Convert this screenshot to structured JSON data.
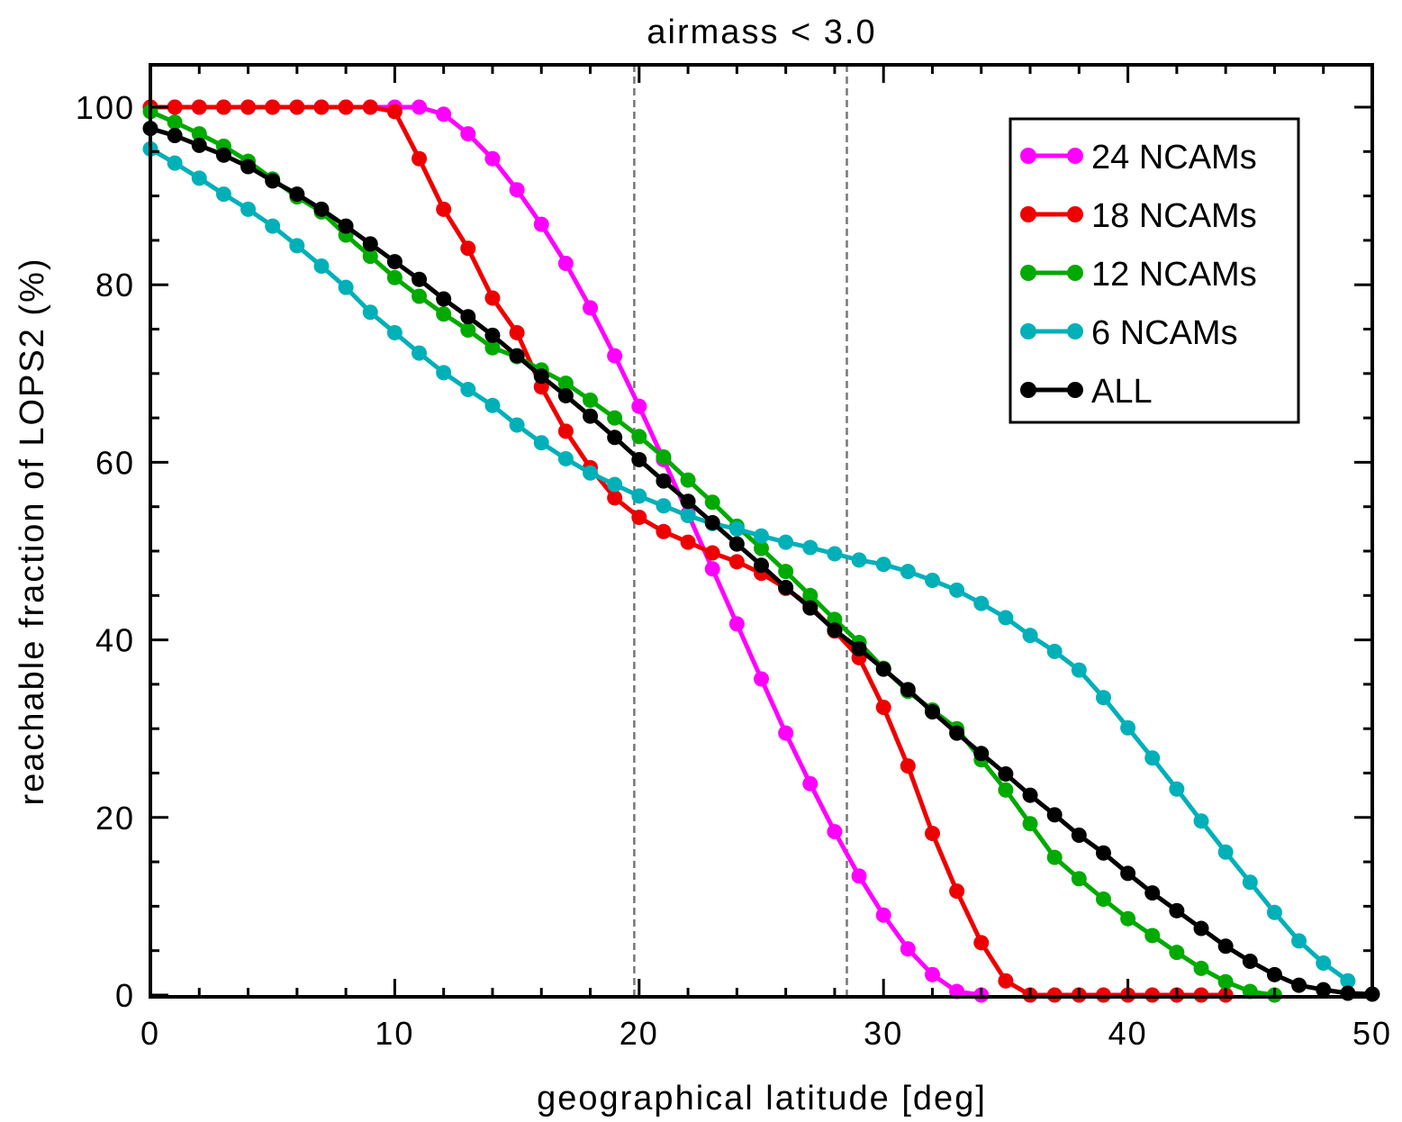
{
  "chart_data": {
    "type": "line",
    "title": "airmass < 3.0",
    "xlabel": "geographical latitude [deg]",
    "ylabel": "reachable fraction of LOPS2 (%)",
    "xlim": [
      0,
      50
    ],
    "ylim": [
      0,
      100
    ],
    "x_ticks": [
      0,
      10,
      20,
      30,
      40,
      50
    ],
    "y_ticks": [
      0,
      20,
      40,
      60,
      80,
      100
    ],
    "x_tick_labels": [
      "0",
      "10",
      "20",
      "30",
      "40",
      "50"
    ],
    "y_tick_labels": [
      "0",
      "20",
      "40",
      "60",
      "80",
      "100"
    ],
    "vertical_reference_lines": [
      19.8,
      28.5
    ],
    "legend_position": "top-right",
    "series": [
      {
        "name": "24 NCAMs",
        "color": "#ff00ff",
        "x": [
          0,
          1,
          2,
          3,
          4,
          5,
          6,
          7,
          8,
          9,
          10,
          11,
          12,
          13,
          14,
          15,
          16,
          17,
          18,
          19,
          20,
          21,
          22,
          23,
          24,
          25,
          26,
          27,
          28,
          29,
          30,
          31,
          32,
          33,
          34
        ],
        "values": [
          100,
          100,
          100,
          100,
          100,
          100,
          100,
          100,
          100,
          100,
          100,
          100,
          99.2,
          97,
          94.2,
          90.7,
          86.8,
          82.4,
          77.4,
          72,
          66.3,
          60.3,
          54.2,
          48,
          41.8,
          35.6,
          29.5,
          23.8,
          18.4,
          13.4,
          9,
          5.2,
          2.3,
          0.4,
          0
        ]
      },
      {
        "name": "18 NCAMs",
        "color": "#ee0000",
        "x": [
          0,
          1,
          2,
          3,
          4,
          5,
          6,
          7,
          8,
          9,
          10,
          11,
          12,
          13,
          14,
          15,
          16,
          17,
          18,
          19,
          20,
          21,
          22,
          23,
          24,
          25,
          26,
          27,
          28,
          29,
          30,
          31,
          32,
          33,
          34,
          35,
          36,
          37,
          38,
          39,
          40,
          41,
          42,
          43,
          44
        ],
        "values": [
          100,
          100,
          100,
          100,
          100,
          100,
          100,
          100,
          100,
          100,
          99.5,
          94.2,
          88.5,
          84.1,
          78.5,
          74.6,
          68.5,
          63.5,
          59.4,
          56,
          53.8,
          52.2,
          51,
          49.8,
          48.8,
          47.5,
          45.8,
          43.8,
          41,
          38,
          32.4,
          25.8,
          18.2,
          11.7,
          5.9,
          1.6,
          0,
          0,
          0,
          0,
          0,
          0,
          0,
          0,
          0
        ]
      },
      {
        "name": "12 NCAMs",
        "color": "#00aa00",
        "x": [
          0,
          1,
          2,
          3,
          4,
          5,
          6,
          7,
          8,
          9,
          10,
          11,
          12,
          13,
          14,
          15,
          16,
          17,
          18,
          19,
          20,
          21,
          22,
          23,
          24,
          25,
          26,
          27,
          28,
          29,
          30,
          31,
          32,
          33,
          34,
          35,
          36,
          37,
          38,
          39,
          40,
          41,
          42,
          43,
          44,
          45,
          46
        ],
        "values": [
          99.5,
          98.3,
          97,
          95.6,
          93.9,
          91.9,
          89.9,
          88.2,
          85.6,
          83.2,
          80.8,
          78.7,
          76.7,
          74.9,
          72.9,
          71.9,
          70.4,
          68.9,
          67,
          65,
          62.9,
          60.6,
          58,
          55.5,
          52.8,
          50.3,
          47.7,
          45,
          42.3,
          39.7,
          36.8,
          34.2,
          32.1,
          30,
          26.5,
          23.1,
          19.3,
          15.5,
          13.1,
          10.8,
          8.6,
          6.7,
          4.8,
          3,
          1.5,
          0.4,
          0
        ]
      },
      {
        "name": "6 NCAMs",
        "color": "#00b0b8",
        "x": [
          0,
          1,
          2,
          3,
          4,
          5,
          6,
          7,
          8,
          9,
          10,
          11,
          12,
          13,
          14,
          15,
          16,
          17,
          18,
          19,
          20,
          21,
          22,
          23,
          24,
          25,
          26,
          27,
          28,
          29,
          30,
          31,
          32,
          33,
          34,
          35,
          36,
          37,
          38,
          39,
          40,
          41,
          42,
          43,
          44,
          45,
          46,
          47,
          48,
          49
        ],
        "values": [
          95.3,
          93.7,
          92,
          90.2,
          88.5,
          86.6,
          84.4,
          82.1,
          79.7,
          76.9,
          74.6,
          72.3,
          70.1,
          68.2,
          66.4,
          64.2,
          62.2,
          60.4,
          58.8,
          57.5,
          56.2,
          55.1,
          54,
          53.1,
          52.5,
          51.7,
          51,
          50.4,
          49.7,
          49,
          48.5,
          47.7,
          46.7,
          45.6,
          44.1,
          42.5,
          40.5,
          38.7,
          36.6,
          33.5,
          30.1,
          26.7,
          23.2,
          19.6,
          16.1,
          12.7,
          9.3,
          6.1,
          3.6,
          1.6
        ]
      },
      {
        "name": "ALL",
        "color": "#000000",
        "x": [
          0,
          1,
          2,
          3,
          4,
          5,
          6,
          7,
          8,
          9,
          10,
          11,
          12,
          13,
          14,
          15,
          16,
          17,
          18,
          19,
          20,
          21,
          22,
          23,
          24,
          25,
          26,
          27,
          28,
          29,
          30,
          31,
          32,
          33,
          34,
          35,
          36,
          37,
          38,
          39,
          40,
          41,
          42,
          43,
          44,
          45,
          46,
          47,
          48,
          49,
          50
        ],
        "values": [
          97.6,
          96.8,
          95.7,
          94.6,
          93.3,
          91.7,
          90.2,
          88.5,
          86.6,
          84.6,
          82.6,
          80.6,
          78.4,
          76.4,
          74.3,
          72,
          69.7,
          67.5,
          65.2,
          62.8,
          60.3,
          57.9,
          55.6,
          53.2,
          50.8,
          48.4,
          45.9,
          43.6,
          41.1,
          39,
          36.7,
          34.4,
          31.9,
          29.5,
          27.2,
          24.9,
          22.5,
          20.3,
          18,
          16,
          13.7,
          11.5,
          9.5,
          7.5,
          5.5,
          3.8,
          2.3,
          1.1,
          0.6,
          0.2,
          0.1
        ]
      }
    ]
  }
}
